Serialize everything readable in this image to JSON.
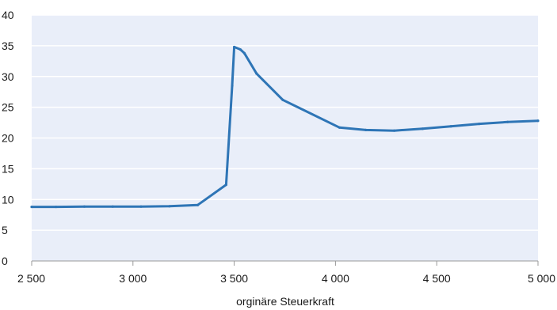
{
  "chart_data": {
    "type": "line",
    "title": "",
    "xlabel": "orginäre Steuerkraft",
    "ylabel": "",
    "xlim": [
      2500,
      5000
    ],
    "ylim": [
      0,
      40
    ],
    "x_ticks": [
      2500,
      3000,
      3500,
      4000,
      4500,
      5000
    ],
    "x_tick_labels": [
      "2 500",
      "3 000",
      "3 500",
      "4 000",
      "4 500",
      "5 000"
    ],
    "y_ticks": [
      0,
      5,
      10,
      15,
      20,
      25,
      30,
      35,
      40
    ],
    "y_tick_labels": [
      "0",
      "5",
      "10",
      "15",
      "20",
      "25",
      "30",
      "35",
      "40"
    ],
    "grid": "horizontal",
    "legend": "none",
    "colors": {
      "plot_background": "#e9eef9",
      "gridline": "#ffffff",
      "line": "#2e75b6",
      "axis": "#999999"
    },
    "series": [
      {
        "x": [
          2500,
          2620,
          2760,
          2900,
          3040,
          3180,
          3320,
          3460,
          3490,
          3500,
          3530,
          3550,
          3610,
          3740,
          4020,
          4150,
          4290,
          4430,
          4570,
          4710,
          4850,
          5000
        ],
        "y": [
          8.8,
          8.8,
          8.85,
          8.85,
          8.85,
          8.9,
          9.1,
          12.4,
          28.5,
          34.8,
          34.4,
          33.8,
          30.5,
          26.2,
          21.7,
          21.3,
          21.2,
          21.5,
          21.9,
          22.3,
          22.6,
          22.8
        ]
      }
    ]
  }
}
